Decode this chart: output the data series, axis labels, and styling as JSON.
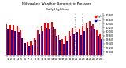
{
  "title": "Milwaukee Weather Barometric Pressure",
  "subtitle": "Daily High/Low",
  "background_color": "#ffffff",
  "high_color": "#ff0000",
  "low_color": "#0000bb",
  "ylim": [
    28.8,
    30.9
  ],
  "ytick_vals": [
    29.0,
    29.2,
    29.4,
    29.6,
    29.8,
    30.0,
    30.2,
    30.4,
    30.6,
    30.8
  ],
  "days": [
    "1",
    "2",
    "3",
    "4",
    "5",
    "6",
    "7",
    "8",
    "9",
    "10",
    "11",
    "12",
    "13",
    "14",
    "15",
    "16",
    "17",
    "18",
    "19",
    "20",
    "21",
    "22",
    "23",
    "24",
    "25",
    "26",
    "27",
    "28"
  ],
  "highs": [
    30.38,
    30.35,
    30.32,
    30.3,
    30.08,
    29.62,
    29.48,
    29.52,
    29.72,
    30.08,
    30.28,
    30.45,
    30.4,
    30.48,
    30.12,
    29.82,
    29.62,
    29.78,
    30.02,
    30.18,
    30.22,
    30.12,
    30.28,
    30.42,
    30.52,
    30.38,
    30.08,
    29.92
  ],
  "lows": [
    30.12,
    30.08,
    30.02,
    29.98,
    29.72,
    29.42,
    29.28,
    29.32,
    29.58,
    29.88,
    30.02,
    30.18,
    30.12,
    30.22,
    29.78,
    29.58,
    29.38,
    29.52,
    29.78,
    29.92,
    29.98,
    29.82,
    30.02,
    30.18,
    30.28,
    30.12,
    29.78,
    29.62
  ],
  "dotted_vlines_x": [
    19.5,
    21.5
  ],
  "legend_labels": [
    "High",
    "Low"
  ],
  "legend_colors": [
    "#ff0000",
    "#0000bb"
  ]
}
